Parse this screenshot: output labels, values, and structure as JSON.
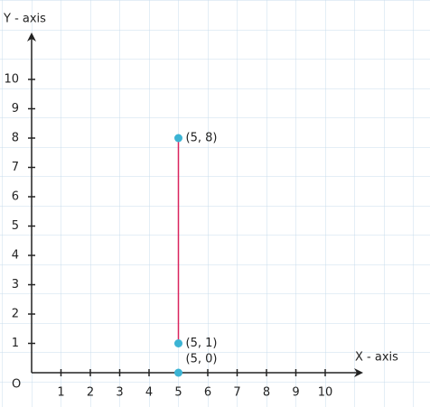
{
  "chart_data": {
    "type": "scatter",
    "x_label": "X - axis",
    "y_label": "Y - axis",
    "origin_label": "O",
    "xlim": [
      0,
      11
    ],
    "ylim": [
      0,
      11.5
    ],
    "xticks": [
      1,
      2,
      3,
      4,
      5,
      6,
      7,
      8,
      9,
      10
    ],
    "yticks": [
      1,
      2,
      3,
      4,
      5,
      6,
      7,
      8,
      9,
      10
    ],
    "points": {
      "x": [
        5,
        5,
        5
      ],
      "y": [
        8,
        1,
        0
      ],
      "labels": [
        "(5, 8)",
        "(5, 1)",
        "(5, 0)"
      ],
      "color": "#3cb4d4"
    },
    "segment": {
      "x": [
        5,
        5
      ],
      "y": [
        1,
        8
      ],
      "color": "#d9245e"
    }
  }
}
